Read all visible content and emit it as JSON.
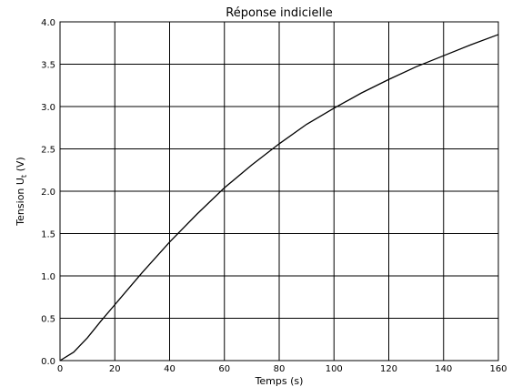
{
  "chart_data": {
    "type": "line",
    "title": "Réponse indicielle",
    "xlabel": "Temps  (s)",
    "ylabel": {
      "prefix": "Tension U",
      "subscript": "t",
      "suffix": "  (V)"
    },
    "xlim": [
      0,
      160
    ],
    "ylim": [
      0,
      4.0
    ],
    "xticks": [
      0,
      20,
      40,
      60,
      80,
      100,
      120,
      140,
      160
    ],
    "xtick_labels": [
      "0",
      "20",
      "40",
      "60",
      "80",
      "100",
      "120",
      "140",
      "160"
    ],
    "yticks": [
      0,
      0.5,
      1.0,
      1.5,
      2.0,
      2.5,
      3.0,
      3.5,
      4.0
    ],
    "ytick_labels": [
      "0.0",
      "0.5",
      "1.0",
      "1.5",
      "2.0",
      "2.5",
      "3.0",
      "3.5",
      "4.0"
    ],
    "grid": true,
    "line_color": "#000000",
    "series": [
      {
        "x": [
          0,
          5,
          10,
          15,
          20,
          25,
          30,
          40,
          50,
          60,
          70,
          80,
          90,
          100,
          110,
          120,
          130,
          140,
          150,
          160
        ],
        "y": [
          0,
          0.1,
          0.27,
          0.47,
          0.66,
          0.85,
          1.04,
          1.4,
          1.73,
          2.04,
          2.31,
          2.56,
          2.79,
          2.98,
          3.16,
          3.32,
          3.47,
          3.6,
          3.73,
          3.85
        ]
      }
    ]
  }
}
